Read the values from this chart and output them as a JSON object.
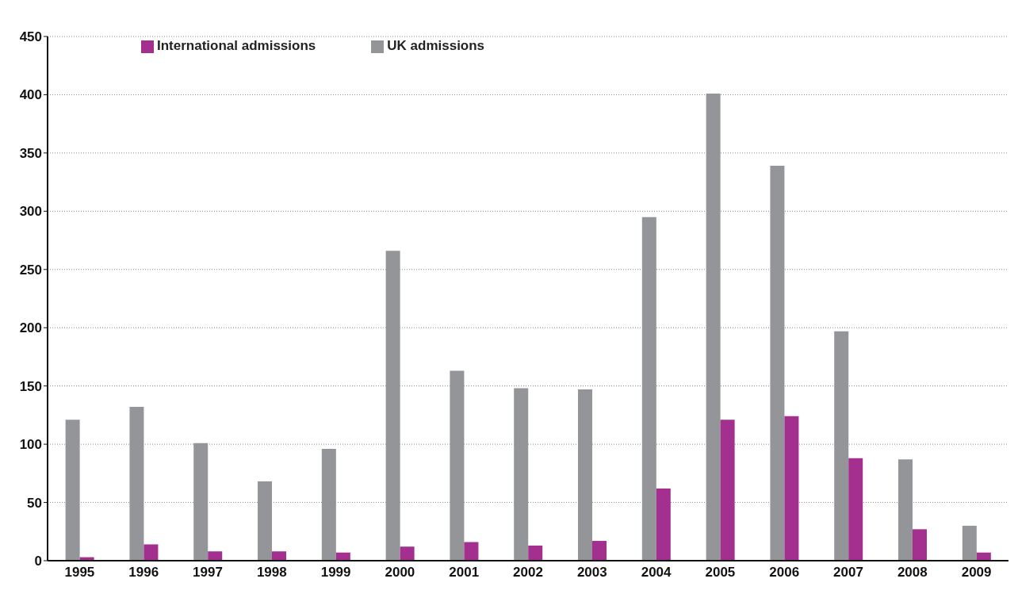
{
  "chart_data": {
    "type": "bar",
    "categories": [
      "1995",
      "1996",
      "1997",
      "1998",
      "1999",
      "2000",
      "2001",
      "2002",
      "2003",
      "2004",
      "2005",
      "2006",
      "2007",
      "2008",
      "2009"
    ],
    "series": [
      {
        "name": "UK admissions",
        "color": "#939598",
        "values": [
          121,
          132,
          101,
          68,
          96,
          266,
          163,
          148,
          147,
          295,
          401,
          339,
          197,
          87,
          30
        ]
      },
      {
        "name": "International admissions",
        "color": "#a3308f",
        "values": [
          3,
          14,
          8,
          8,
          7,
          12,
          16,
          13,
          17,
          62,
          121,
          124,
          88,
          27,
          7
        ]
      }
    ],
    "ylim": [
      0,
      450
    ],
    "yticks": [
      0,
      50,
      100,
      150,
      200,
      250,
      300,
      350,
      400,
      450
    ],
    "grid": "y",
    "legend": "top left"
  }
}
